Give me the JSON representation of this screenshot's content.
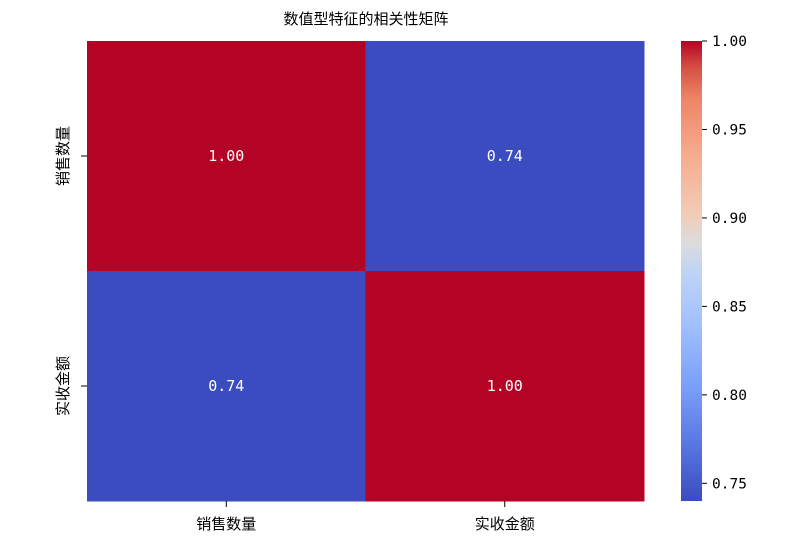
{
  "chart_data": {
    "type": "heatmap",
    "title": "数值型特征的相关性矩阵",
    "xlabel": "",
    "ylabel": "",
    "x_categories": [
      "销售数量",
      "实收金额"
    ],
    "y_categories": [
      "销售数量",
      "实收金额"
    ],
    "values": [
      [
        1.0,
        0.74
      ],
      [
        0.74,
        1.0
      ]
    ],
    "value_labels": [
      [
        "1.00",
        "0.74"
      ],
      [
        "0.74",
        "1.00"
      ]
    ],
    "colormap": "coolwarm",
    "color_low": "#3b4cc0",
    "color_high": "#b40426",
    "colorbar": {
      "range": [
        0.74,
        1.0
      ],
      "ticks": [
        0.75,
        0.8,
        0.85,
        0.9,
        0.95,
        1.0
      ],
      "tick_labels": [
        "0.75",
        "0.80",
        "0.85",
        "0.90",
        "0.95",
        "1.00"
      ]
    },
    "grid": false
  }
}
